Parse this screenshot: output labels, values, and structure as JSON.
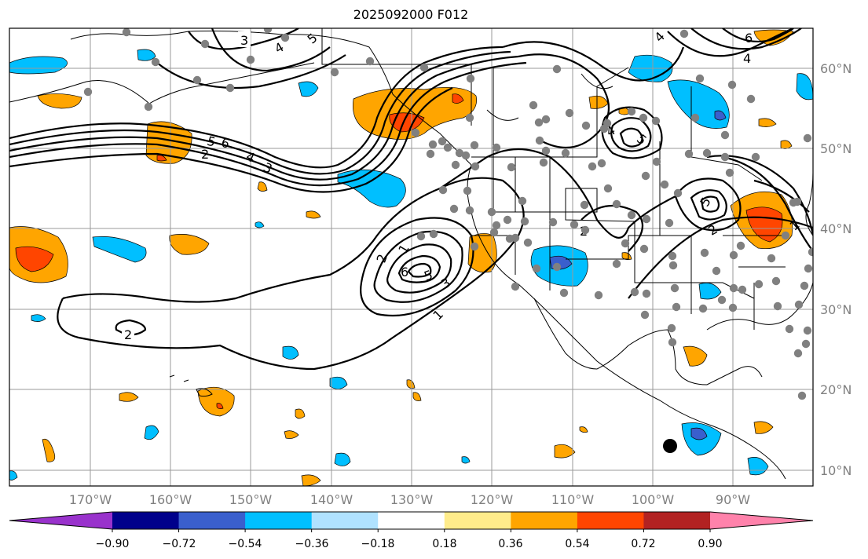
{
  "title": "2025092000 F012",
  "lat_labels": [
    "60°N",
    "50°N",
    "40°N",
    "30°N",
    "20°N",
    "10°N"
  ],
  "lon_labels": [
    "170°W",
    "160°W",
    "150°W",
    "140°W",
    "130°W",
    "120°W",
    "110°W",
    "100°W",
    "90°W"
  ],
  "colorbar": {
    "ticks": [
      "−0.90",
      "−0.72",
      "−0.54",
      "−0.36",
      "−0.18",
      "0.18",
      "0.36",
      "0.54",
      "0.72",
      "0.90"
    ],
    "colors": [
      "#9932cc",
      "#00008b",
      "#3a5fcd",
      "#00bfff",
      "#b0e2ff",
      "#ffffff",
      "#ffec8b",
      "#ffa500",
      "#ff4500",
      "#b22222",
      "#ff82ab"
    ]
  },
  "contour_labels": [
    "3",
    "4",
    "5",
    "5",
    "6",
    "4",
    "3",
    "2",
    "2",
    "1",
    "2",
    "3",
    "5",
    "6",
    "1",
    "2",
    "4",
    "5",
    "4",
    "6",
    "4",
    "5",
    "2",
    "1"
  ],
  "point_color": "#808080"
}
